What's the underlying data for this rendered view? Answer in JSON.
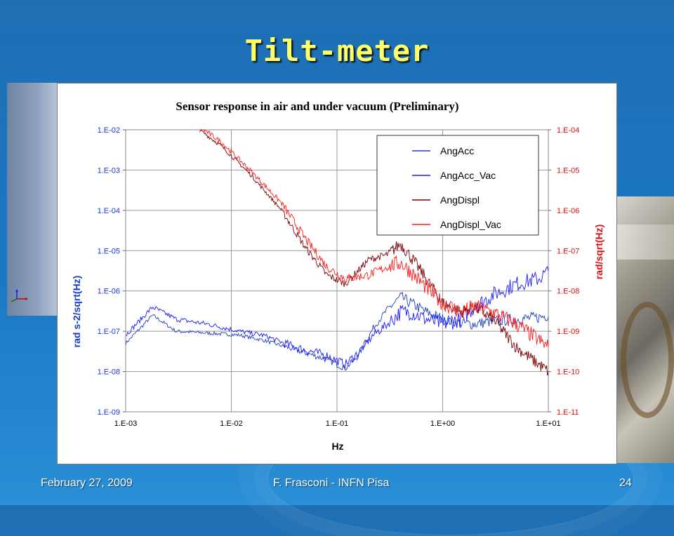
{
  "slide": {
    "title": "Tilt-meter",
    "footer_left": "February 27, 2009",
    "footer_center": "F. Frasconi - INFN Pisa",
    "page_number": "24"
  },
  "chart_data": {
    "type": "line",
    "title": "Sensor response in air and under vacuum (Preliminary)",
    "xlabel": "Hz",
    "ylabel_left": "rad s-2/sqrt(Hz)",
    "ylabel_right": "rad/sqrt(Hz)",
    "x_scale": "log",
    "y_scale": "log",
    "xlim": [
      0.001,
      10
    ],
    "ylim_left": [
      1e-09,
      0.01
    ],
    "ylim_right": [
      1e-11,
      0.0001
    ],
    "x_ticks": [
      "1.E-03",
      "1.E-02",
      "1.E-01",
      "1.E+00",
      "1.E+01"
    ],
    "y_ticks_left": [
      "1.E-09",
      "1.E-08",
      "1.E-07",
      "1.E-06",
      "1.E-05",
      "1.E-04",
      "1.E-03",
      "1.E-02"
    ],
    "y_ticks_right": [
      "1.E-11",
      "1.E-10",
      "1.E-09",
      "1.E-08",
      "1.E-07",
      "1.E-06",
      "1.E-05",
      "1.E-04"
    ],
    "grid": true,
    "legend_position": "top-right",
    "series": [
      {
        "name": "AngAcc",
        "color": "#1f3fbf",
        "axis": "left",
        "noise": 0.18,
        "x": [
          0.001,
          0.0018,
          0.003,
          0.006,
          0.012,
          0.02,
          0.04,
          0.08,
          0.12,
          0.16,
          0.22,
          0.3,
          0.4,
          0.5,
          0.7,
          1.0,
          1.5,
          2.0,
          3.0,
          5.0,
          8.0,
          10.0
        ],
        "y": [
          5e-08,
          2.5e-07,
          1e-07,
          9e-08,
          8e-08,
          6e-08,
          3.5e-08,
          2e-08,
          1.2e-08,
          2.5e-08,
          1.2e-07,
          3.5e-07,
          7e-07,
          5e-07,
          3e-07,
          2e-07,
          1.6e-07,
          1.5e-07,
          1.8e-07,
          2e-07,
          2.2e-07,
          2.5e-07
        ]
      },
      {
        "name": "AngAcc_Vac",
        "color": "#1a1aff",
        "axis": "left",
        "noise": 0.25,
        "x": [
          0.001,
          0.0018,
          0.003,
          0.006,
          0.012,
          0.02,
          0.04,
          0.08,
          0.12,
          0.16,
          0.22,
          0.3,
          0.4,
          0.5,
          0.7,
          1.0,
          1.5,
          2.0,
          3.0,
          5.0,
          8.0,
          10.0
        ],
        "y": [
          8e-08,
          4e-07,
          2e-07,
          1.5e-07,
          1e-07,
          8e-08,
          4e-08,
          2.5e-08,
          1.5e-08,
          3e-08,
          8e-08,
          1.5e-07,
          3e-07,
          3e-07,
          2e-07,
          1.5e-07,
          2e-07,
          4e-07,
          8e-07,
          1.5e-06,
          2e-06,
          3e-06
        ]
      },
      {
        "name": "AngDispl",
        "color": "#7a0000",
        "axis": "right",
        "noise": 0.2,
        "x": [
          0.005,
          0.008,
          0.015,
          0.03,
          0.05,
          0.08,
          0.12,
          0.2,
          0.3,
          0.4,
          0.5,
          0.7,
          1.0,
          1.5,
          2.0,
          3.0,
          5.0,
          7.0,
          10.0
        ],
        "y": [
          0.0001,
          4e-05,
          8e-06,
          1e-06,
          1.2e-07,
          2.5e-08,
          1.5e-08,
          6e-08,
          8e-08,
          1.5e-07,
          7e-08,
          2e-08,
          5e-09,
          3e-09,
          4e-09,
          2e-09,
          4e-10,
          2e-10,
          1e-10
        ]
      },
      {
        "name": "AngDispl_Vac",
        "color": "#ff1a1a",
        "axis": "right",
        "noise": 0.25,
        "x": [
          0.005,
          0.008,
          0.015,
          0.03,
          0.05,
          0.08,
          0.12,
          0.2,
          0.3,
          0.4,
          0.5,
          0.7,
          1.0,
          1.5,
          2.0,
          3.0,
          5.0,
          7.0,
          10.0
        ],
        "y": [
          0.00012,
          5e-05,
          1e-05,
          1.5e-06,
          2e-07,
          4e-08,
          2e-08,
          2.5e-08,
          4e-08,
          5e-08,
          3e-08,
          1.2e-08,
          5e-09,
          3e-09,
          4e-09,
          3e-09,
          1.5e-09,
          8e-10,
          4e-10
        ]
      }
    ]
  }
}
